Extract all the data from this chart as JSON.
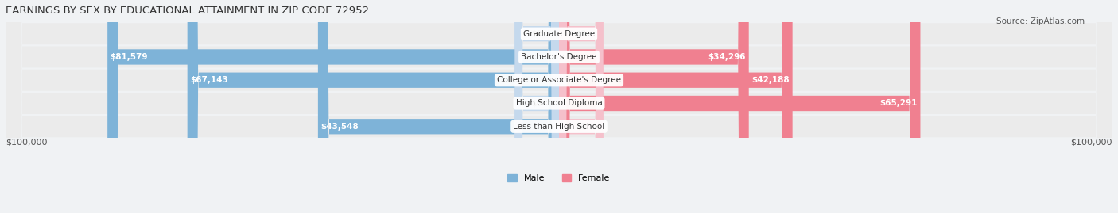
{
  "title": "EARNINGS BY SEX BY EDUCATIONAL ATTAINMENT IN ZIP CODE 72952",
  "source": "Source: ZipAtlas.com",
  "categories": [
    "Less than High School",
    "High School Diploma",
    "College or Associate's Degree",
    "Bachelor's Degree",
    "Graduate Degree"
  ],
  "male_values": [
    43548,
    0,
    67143,
    81579,
    0
  ],
  "female_values": [
    0,
    65291,
    42188,
    34296,
    0
  ],
  "male_color": "#7eb3d8",
  "female_color": "#f08090",
  "male_light_color": "#c5d9ed",
  "female_light_color": "#f5c0cb",
  "max_value": 100000,
  "bg_color": "#f0f0f0",
  "bar_bg_color": "#e8e8e8",
  "row_bg_color": "#f5f5f5",
  "title_fontsize": 10,
  "source_fontsize": 8,
  "label_fontsize": 8,
  "axis_label_left": "$100,000",
  "axis_label_right": "$100,000"
}
